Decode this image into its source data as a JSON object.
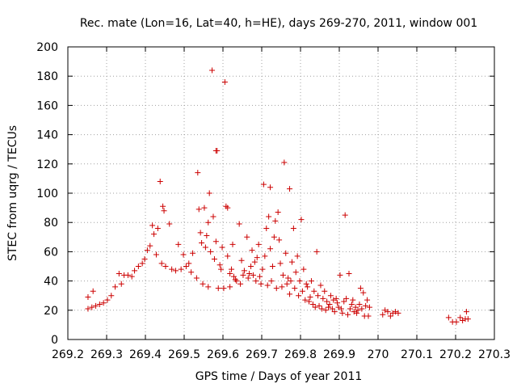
{
  "chart_data": {
    "type": "scatter",
    "title": "Rec. mate (Lon=16, Lat=40, h=HE), days 269-270, 2011, window 001",
    "xlabel": "GPS time / Days of year 2011",
    "ylabel": "STEC from uqrg / TECUs",
    "xlim": [
      269.2,
      270.3
    ],
    "ylim": [
      0,
      200
    ],
    "xticks": [
      269.2,
      269.3,
      269.4,
      269.5,
      269.6,
      269.7,
      269.8,
      269.9,
      270.0,
      270.1,
      270.2,
      270.3
    ],
    "xtick_labels": [
      "269.2",
      "269.3",
      "269.4",
      "269.5",
      "269.6",
      "269.7",
      "269.8",
      "269.9",
      "270",
      "270.1",
      "270.2",
      "270.3"
    ],
    "yticks": [
      0,
      20,
      40,
      60,
      80,
      100,
      120,
      140,
      160,
      180,
      200
    ],
    "ytick_labels": [
      "0",
      "20",
      "40",
      "60",
      "80",
      "100",
      "120",
      "140",
      "160",
      "180",
      "200"
    ],
    "grid": true,
    "marker": "+",
    "color": "#cc0000",
    "series": [
      {
        "name": "",
        "points": [
          [
            269.252,
            21
          ],
          [
            269.252,
            29
          ],
          [
            269.262,
            22
          ],
          [
            269.265,
            33
          ],
          [
            269.272,
            23
          ],
          [
            269.282,
            24
          ],
          [
            269.292,
            25
          ],
          [
            269.302,
            27
          ],
          [
            269.312,
            30
          ],
          [
            269.322,
            36
          ],
          [
            269.332,
            45
          ],
          [
            269.338,
            38
          ],
          [
            269.345,
            44
          ],
          [
            269.355,
            44
          ],
          [
            269.365,
            43
          ],
          [
            269.372,
            47
          ],
          [
            269.382,
            50
          ],
          [
            269.392,
            52
          ],
          [
            269.398,
            55
          ],
          [
            269.405,
            61
          ],
          [
            269.412,
            64
          ],
          [
            269.418,
            78
          ],
          [
            269.422,
            72
          ],
          [
            269.428,
            58
          ],
          [
            269.432,
            76
          ],
          [
            269.438,
            108
          ],
          [
            269.442,
            52
          ],
          [
            269.445,
            91
          ],
          [
            269.448,
            88
          ],
          [
            269.452,
            50
          ],
          [
            269.462,
            79
          ],
          [
            269.468,
            48
          ],
          [
            269.478,
            47
          ],
          [
            269.485,
            65
          ],
          [
            269.492,
            48
          ],
          [
            269.498,
            58
          ],
          [
            269.505,
            50
          ],
          [
            269.512,
            52
          ],
          [
            269.518,
            46
          ],
          [
            269.522,
            59
          ],
          [
            269.532,
            42
          ],
          [
            269.535,
            114
          ],
          [
            269.538,
            89
          ],
          [
            269.542,
            73
          ],
          [
            269.545,
            66
          ],
          [
            269.548,
            38
          ],
          [
            269.552,
            90
          ],
          [
            269.555,
            63
          ],
          [
            269.558,
            71
          ],
          [
            269.562,
            80
          ],
          [
            269.562,
            36
          ],
          [
            269.565,
            100
          ],
          [
            269.568,
            60
          ],
          [
            269.572,
            184
          ],
          [
            269.575,
            84
          ],
          [
            269.578,
            55
          ],
          [
            269.582,
            129
          ],
          [
            269.582,
            67
          ],
          [
            269.585,
            129
          ],
          [
            269.588,
            35
          ],
          [
            269.592,
            51
          ],
          [
            269.595,
            48
          ],
          [
            269.598,
            63
          ],
          [
            269.602,
            35
          ],
          [
            269.605,
            176
          ],
          [
            269.608,
            91
          ],
          [
            269.612,
            90
          ],
          [
            269.612,
            57
          ],
          [
            269.618,
            45
          ],
          [
            269.618,
            36
          ],
          [
            269.622,
            48
          ],
          [
            269.625,
            65
          ],
          [
            269.628,
            43
          ],
          [
            269.632,
            41
          ],
          [
            269.635,
            40
          ],
          [
            269.642,
            79
          ],
          [
            269.645,
            38
          ],
          [
            269.648,
            54
          ],
          [
            269.652,
            44
          ],
          [
            269.655,
            47
          ],
          [
            269.662,
            70
          ],
          [
            269.665,
            42
          ],
          [
            269.668,
            45
          ],
          [
            269.672,
            50
          ],
          [
            269.675,
            61
          ],
          [
            269.678,
            44
          ],
          [
            269.682,
            53
          ],
          [
            269.685,
            40
          ],
          [
            269.688,
            56
          ],
          [
            269.692,
            65
          ],
          [
            269.695,
            43
          ],
          [
            269.698,
            38
          ],
          [
            269.702,
            48
          ],
          [
            269.705,
            106
          ],
          [
            269.708,
            57
          ],
          [
            269.712,
            76
          ],
          [
            269.715,
            37
          ],
          [
            269.718,
            84
          ],
          [
            269.722,
            104
          ],
          [
            269.722,
            62
          ],
          [
            269.725,
            40
          ],
          [
            269.728,
            50
          ],
          [
            269.732,
            70
          ],
          [
            269.735,
            81
          ],
          [
            269.738,
            35
          ],
          [
            269.742,
            87
          ],
          [
            269.745,
            68
          ],
          [
            269.748,
            52
          ],
          [
            269.752,
            36
          ],
          [
            269.755,
            44
          ],
          [
            269.758,
            121
          ],
          [
            269.762,
            59
          ],
          [
            269.765,
            38
          ],
          [
            269.768,
            42
          ],
          [
            269.772,
            103
          ],
          [
            269.772,
            31
          ],
          [
            269.775,
            40
          ],
          [
            269.778,
            53
          ],
          [
            269.782,
            76
          ],
          [
            269.785,
            35
          ],
          [
            269.788,
            46
          ],
          [
            269.792,
            57
          ],
          [
            269.795,
            30
          ],
          [
            269.798,
            40
          ],
          [
            269.802,
            82
          ],
          [
            269.805,
            33
          ],
          [
            269.808,
            48
          ],
          [
            269.812,
            27
          ],
          [
            269.815,
            38
          ],
          [
            269.818,
            36
          ],
          [
            269.822,
            26
          ],
          [
            269.825,
            29
          ],
          [
            269.828,
            40
          ],
          [
            269.832,
            24
          ],
          [
            269.835,
            33
          ],
          [
            269.838,
            22
          ],
          [
            269.842,
            60
          ],
          [
            269.845,
            30
          ],
          [
            269.848,
            23
          ],
          [
            269.852,
            37
          ],
          [
            269.855,
            21
          ],
          [
            269.858,
            28
          ],
          [
            269.862,
            33
          ],
          [
            269.865,
            20
          ],
          [
            269.868,
            26
          ],
          [
            269.872,
            22
          ],
          [
            269.875,
            24
          ],
          [
            269.878,
            30
          ],
          [
            269.882,
            21
          ],
          [
            269.885,
            27
          ],
          [
            269.888,
            19
          ],
          [
            269.892,
            28
          ],
          [
            269.895,
            25
          ],
          [
            269.898,
            22
          ],
          [
            269.902,
            44
          ],
          [
            269.905,
            21
          ],
          [
            269.908,
            18
          ],
          [
            269.912,
            26
          ],
          [
            269.915,
            85
          ],
          [
            269.918,
            28
          ],
          [
            269.922,
            17
          ],
          [
            269.925,
            45
          ],
          [
            269.928,
            21
          ],
          [
            269.932,
            24
          ],
          [
            269.935,
            27
          ],
          [
            269.938,
            19
          ],
          [
            269.942,
            22
          ],
          [
            269.945,
            18
          ],
          [
            269.948,
            20
          ],
          [
            269.952,
            24
          ],
          [
            269.955,
            35
          ],
          [
            269.958,
            21
          ],
          [
            269.962,
            32
          ],
          [
            269.965,
            16
          ],
          [
            269.968,
            23
          ],
          [
            269.972,
            27
          ],
          [
            269.975,
            16
          ],
          [
            269.978,
            22
          ],
          [
            270.012,
            17
          ],
          [
            270.018,
            20
          ],
          [
            270.025,
            19
          ],
          [
            270.032,
            16
          ],
          [
            270.038,
            18
          ],
          [
            270.045,
            19
          ],
          [
            270.052,
            18
          ],
          [
            270.182,
            15
          ],
          [
            270.192,
            12
          ],
          [
            270.202,
            12
          ],
          [
            270.212,
            15
          ],
          [
            270.218,
            13
          ],
          [
            270.225,
            14
          ],
          [
            270.228,
            19
          ],
          [
            270.232,
            14
          ]
        ]
      }
    ]
  }
}
